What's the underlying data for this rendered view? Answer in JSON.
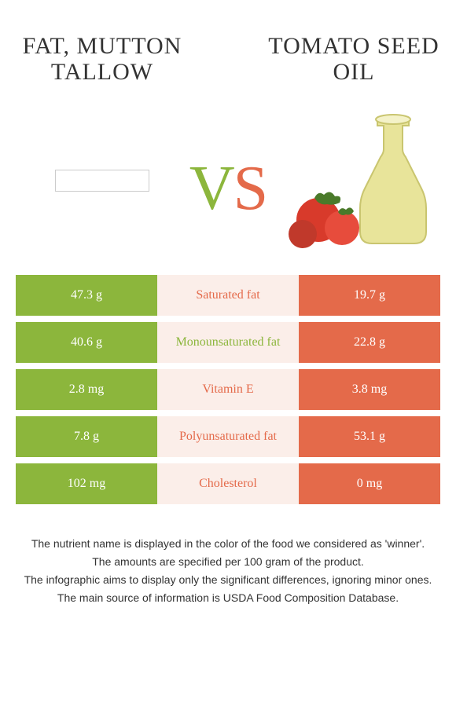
{
  "colors": {
    "left": "#8cb63c",
    "right": "#e46a4a",
    "mid_bg": "#fbeee9",
    "title": "#333333",
    "footnote": "#333333"
  },
  "foods": {
    "left": {
      "title": "Fat, mutton tallow"
    },
    "right": {
      "title": "Tomato seed oil"
    }
  },
  "vs": {
    "v": "V",
    "s": "S"
  },
  "rows": [
    {
      "name": "Saturated fat",
      "left": "47.3 g",
      "right": "19.7 g",
      "winner": "right"
    },
    {
      "name": "Monounsaturated fat",
      "left": "40.6 g",
      "right": "22.8 g",
      "winner": "left"
    },
    {
      "name": "Vitamin E",
      "left": "2.8 mg",
      "right": "3.8 mg",
      "winner": "right"
    },
    {
      "name": "Polyunsaturated fat",
      "left": "7.8 g",
      "right": "53.1 g",
      "winner": "right"
    },
    {
      "name": "Cholesterol",
      "left": "102 mg",
      "right": "0 mg",
      "winner": "right"
    }
  ],
  "footnotes": [
    "The nutrient name is displayed in the color of the food we considered as 'winner'.",
    "The amounts are specified per 100 gram of the product.",
    "The infographic aims to display only the significant differences, ignoring minor ones.",
    "The main source of information is USDA Food Composition Database."
  ]
}
